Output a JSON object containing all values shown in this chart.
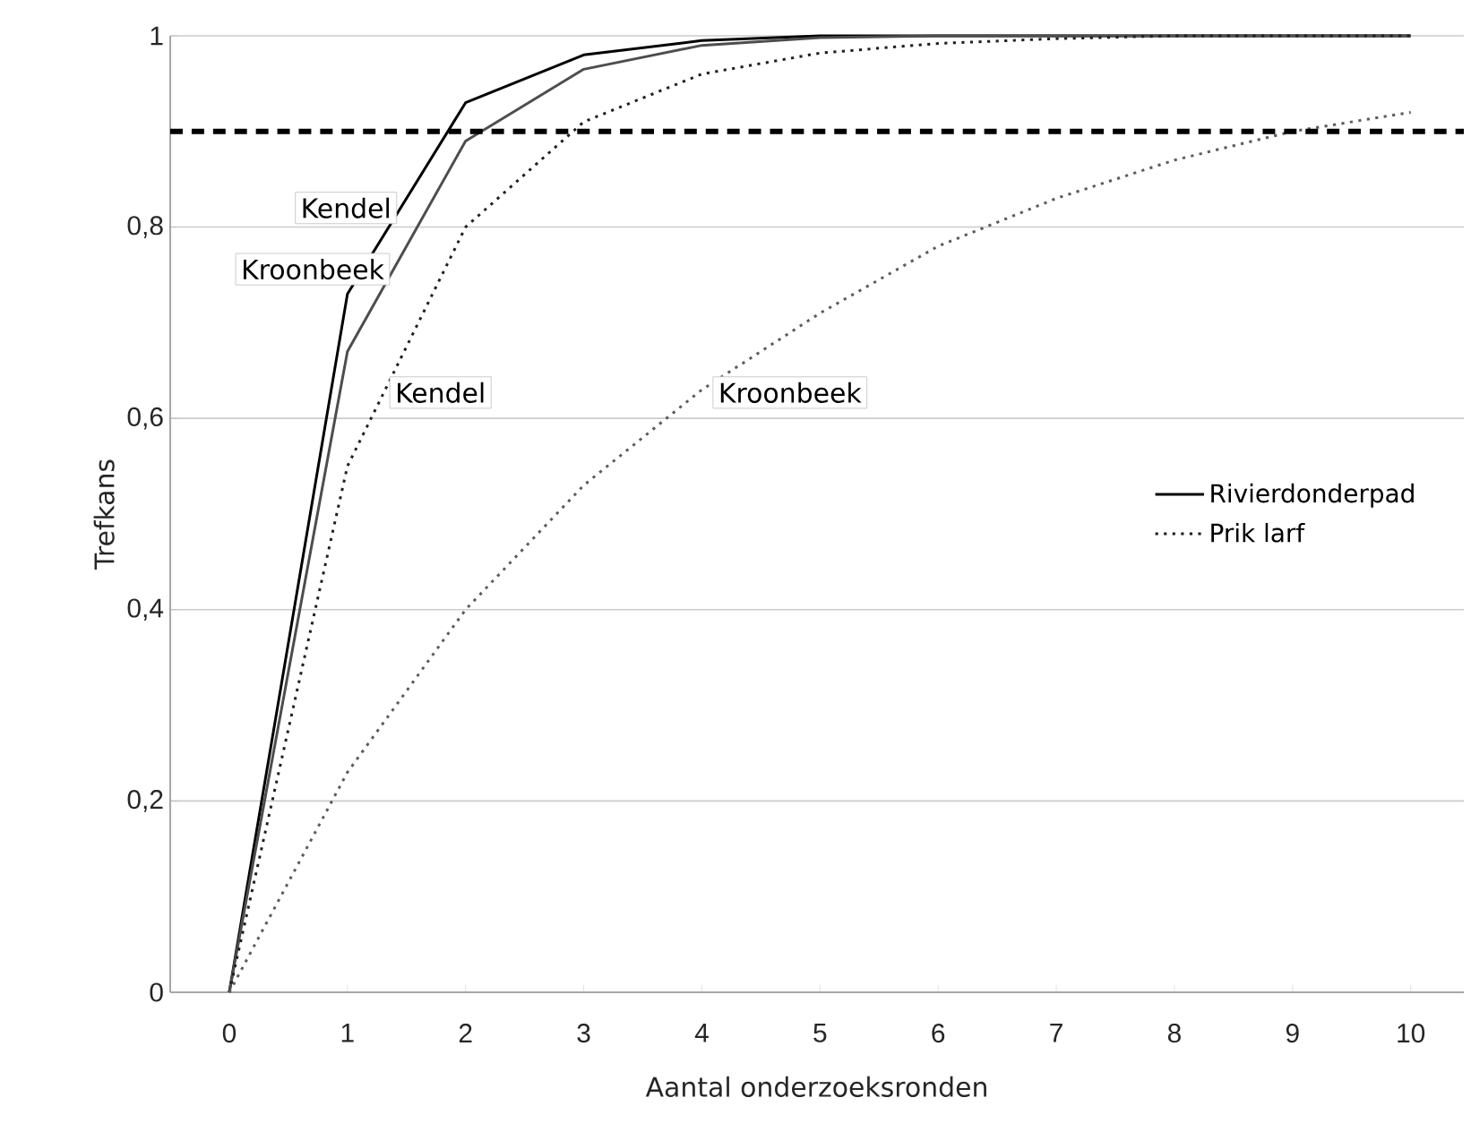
{
  "chart_data": {
    "type": "line",
    "xlabel": "Aantal onderzoeksronden",
    "ylabel": "Trefkans",
    "x": [
      0,
      1,
      2,
      3,
      4,
      5,
      6,
      7,
      8,
      9,
      10
    ],
    "xlim": [
      -0.5,
      10.45
    ],
    "xticks": [
      0,
      1,
      2,
      3,
      4,
      5,
      6,
      7,
      8,
      9,
      10
    ],
    "ylim": [
      0,
      1
    ],
    "yticks": [
      0,
      {
        "value": 0.2,
        "label": "0,2"
      },
      {
        "value": 0.4,
        "label": "0,4"
      },
      {
        "value": 0.6,
        "label": "0,6"
      },
      {
        "value": 0.8,
        "label": "0,8"
      },
      1
    ],
    "grid": "y",
    "legend": "right",
    "series": [
      {
        "name": "Rivierdonderpad",
        "color": "#000000",
        "line_style": "solid",
        "values": [
          0,
          0.73,
          0.93,
          0.98,
          0.995,
          1,
          1,
          1,
          1,
          1,
          1
        ]
      },
      {
        "color": "#4d4d4d",
        "line_style": "solid",
        "values": [
          0,
          0.67,
          0.89,
          0.965,
          0.99,
          0.998,
          1,
          1,
          1,
          1,
          1
        ]
      },
      {
        "name": "Prik larf",
        "color": "#1f1f1f",
        "line_style": "dotted",
        "values": [
          0,
          0.55,
          0.8,
          0.91,
          0.96,
          0.982,
          0.992,
          0.997,
          1,
          1,
          1
        ]
      },
      {
        "color": "#5c5c5c",
        "line_style": "dotted",
        "values": [
          0,
          0.23,
          0.4,
          0.53,
          0.63,
          0.71,
          0.78,
          0.83,
          0.87,
          0.9,
          0.92
        ]
      }
    ],
    "ref_lines": [
      {
        "axis": "y",
        "value": 0.9,
        "color": "#000000",
        "line_style": "dashed"
      }
    ],
    "annotations": [
      {
        "text": "Kendel",
        "x": 1.45,
        "y": 0.82
      },
      {
        "text": "Kroonbeek",
        "x": 1.39,
        "y": 0.756
      },
      {
        "text": "Kendel",
        "x": 1.31,
        "y": 0.627
      },
      {
        "text": "Kroonbeek",
        "x": 3.97,
        "y": 0.627
      }
    ]
  }
}
